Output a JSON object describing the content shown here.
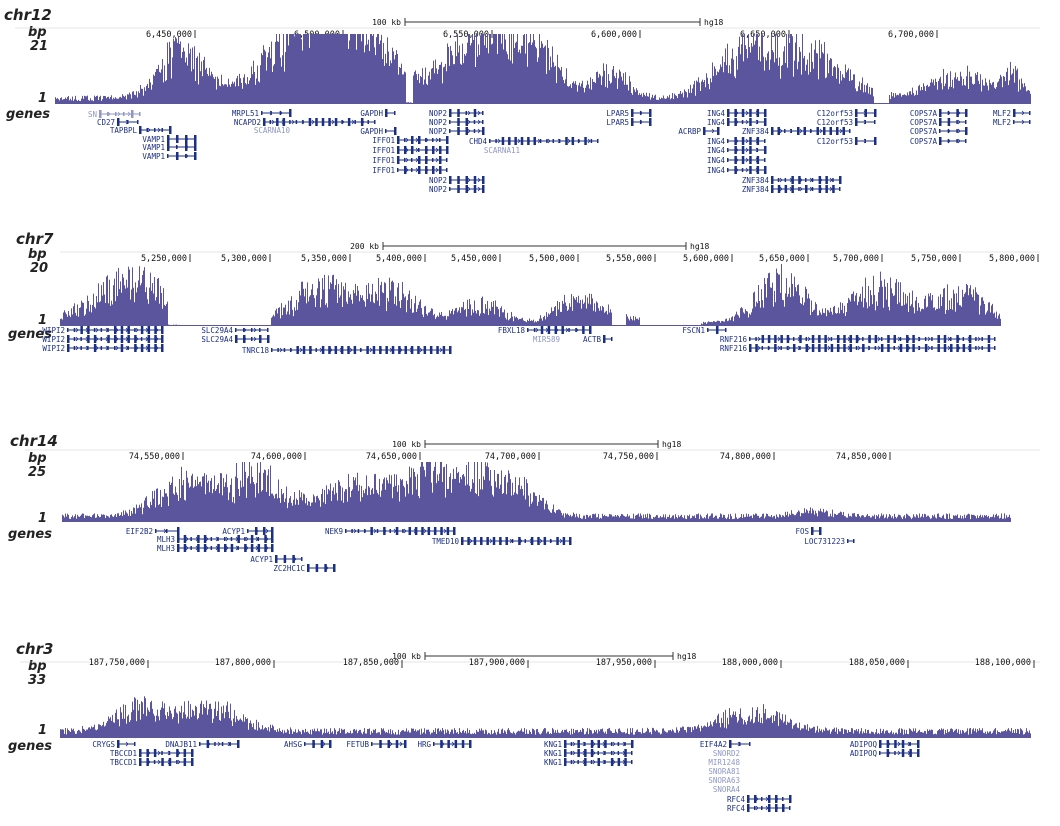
{
  "colors": {
    "signal": "#5b559e",
    "gene": "#1c2f86",
    "gene_faded": "#8e97c7",
    "axis": "#333333",
    "frame": "#cccccc"
  },
  "labels": {
    "bp": "bp",
    "one": "1",
    "genes": "genes"
  },
  "panels": [
    {
      "chrom": "chr12",
      "bp_max": "21",
      "scale_label": "100 kb",
      "assembly": "hg18",
      "ticks": [
        "6,450,000",
        "6,500,000",
        "6,550,000",
        "6,600,000",
        "6,650,000",
        "6,700,000"
      ],
      "genes": [
        "SN",
        "CD27",
        "TAPBPL",
        "VAMP1",
        "VAMP1",
        "VAMP1",
        "MRPL51",
        "NCAPD2",
        "SCARNA10",
        "GAPDH",
        "GAPDH",
        "IFFO1",
        "IFFO1",
        "IFFO1",
        "IFFO1",
        "NOP2",
        "NOP2",
        "NOP2",
        "NOP2",
        "NOP2",
        "CHD4",
        "SCARNA11",
        "LPAR5",
        "LPAR5",
        "ACRBP",
        "ING4",
        "ING4",
        "ING4",
        "ING4",
        "ING4",
        "ING4",
        "ZNF384",
        "ZNF384",
        "ZNF384",
        "C12orf53",
        "C12orf53",
        "C12orf53",
        "COPS7A",
        "COPS7A",
        "COPS7A",
        "COPS7A",
        "MLF2",
        "MLF2"
      ]
    },
    {
      "chrom": "chr7",
      "bp_max": "20",
      "scale_label": "200 kb",
      "assembly": "hg18",
      "ticks": [
        "5,250,000",
        "5,300,000",
        "5,350,000",
        "5,400,000",
        "5,450,000",
        "5,500,000",
        "5,550,000",
        "5,600,000",
        "5,650,000",
        "5,700,000",
        "5,750,000",
        "5,800,000"
      ],
      "genes": [
        "WIPI2",
        "WIPI2",
        "WIPI2",
        "SLC29A4",
        "SLC29A4",
        "TNRC18",
        "FBXL18",
        "MIR589",
        "ACTB",
        "FSCN1",
        "RNF216",
        "RNF216"
      ]
    },
    {
      "chrom": "chr14",
      "bp_max": "25",
      "scale_label": "100 kb",
      "assembly": "hg18",
      "ticks": [
        "74,550,000",
        "74,600,000",
        "74,650,000",
        "74,700,000",
        "74,750,000",
        "74,800,000",
        "74,850,000"
      ],
      "genes": [
        "EIF2B2",
        "MLH3",
        "MLH3",
        "ACYP1",
        "ACYP1",
        "ZC2HC1C",
        "NEK9",
        "TMED10",
        "FOS",
        "LOC731223"
      ]
    },
    {
      "chrom": "chr3",
      "bp_max": "33",
      "scale_label": "100 kb",
      "assembly": "hg18",
      "ticks": [
        "187,750,000",
        "187,800,000",
        "187,850,000",
        "187,900,000",
        "187,950,000",
        "188,000,000",
        "188,050,000",
        "188,100,000"
      ],
      "genes": [
        "CRYGS",
        "TBCCD1",
        "TBCCD1",
        "DNAJB11",
        "AHSG",
        "FETUB",
        "HRG",
        "KNG1",
        "KNG1",
        "KNG1",
        "EIF4A2",
        "SNORD2",
        "MIR1248",
        "SNORA81",
        "SNORA63",
        "SNORA4",
        "RFC4",
        "RFC4",
        "ADIPOQ",
        "ADIPOQ"
      ]
    }
  ]
}
